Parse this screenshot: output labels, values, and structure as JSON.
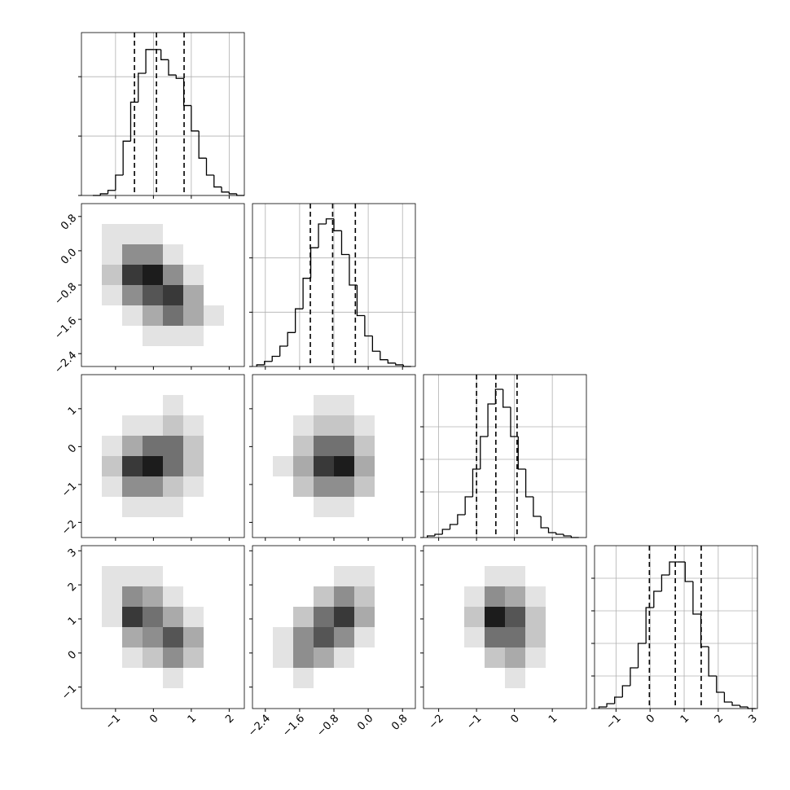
{
  "chart_data": {
    "type": "corner",
    "color": "#000000",
    "variables": [
      {
        "lim": [
          -1.9,
          2.4
        ],
        "ticks": [
          {
            "value": -1,
            "label": "−1"
          },
          0,
          1,
          2
        ],
        "bins": [
          -1.6,
          -1.4,
          -1.2,
          -1,
          -0.8,
          -0.6,
          -0.4,
          -0.2,
          0,
          0.2,
          0.4,
          0.6,
          0.8,
          1,
          1.2,
          1.4,
          1.6,
          1.8,
          2,
          2.2,
          2.4
        ],
        "counts": [
          0,
          1,
          3,
          12,
          32,
          55,
          72,
          86,
          86,
          80,
          71,
          69,
          53,
          38,
          22,
          12,
          5,
          2,
          1,
          0
        ],
        "hist_ylim": [
          0,
          96
        ],
        "hist_yticks": [
          0,
          35,
          70
        ],
        "quantiles": [
          -0.5,
          0.08,
          0.81
        ]
      },
      {
        "lim": [
          -2.7,
          1.1
        ],
        "ticks": [
          {
            "value": -2.4,
            "label": "−2.4"
          },
          {
            "value": -1.6,
            "label": "−1.6"
          },
          {
            "value": -0.8,
            "label": "−0.8"
          },
          {
            "value": 0,
            "label": "0.0"
          },
          0.8
        ],
        "bins": [
          -2.6,
          -2.42,
          -2.24,
          -2.06,
          -1.88,
          -1.7,
          -1.52,
          -1.34,
          -1.16,
          -0.98,
          -0.8,
          -0.62,
          -0.44,
          -0.26,
          -0.08,
          0.1,
          0.28,
          0.46,
          0.64,
          0.82,
          1.0
        ],
        "counts": [
          1,
          3,
          6,
          12,
          20,
          34,
          52,
          70,
          84,
          87,
          80,
          66,
          48,
          30,
          18,
          9,
          4,
          2,
          1,
          0
        ],
        "hist_ylim": [
          0,
          96
        ],
        "hist_yticks": [
          0,
          32,
          64
        ],
        "quantiles": [
          -1.35,
          -0.83,
          -0.3
        ]
      },
      {
        "lim": [
          -2.4,
          1.9
        ],
        "ticks": [
          {
            "value": -2,
            "label": "−2"
          },
          {
            "value": -1,
            "label": "−1"
          },
          0,
          1
        ],
        "bins": [
          -2.3,
          -2.1,
          -1.9,
          -1.7,
          -1.5,
          -1.3,
          -1.1,
          -0.9,
          -0.7,
          -0.5,
          -0.3,
          -0.1,
          0.1,
          0.3,
          0.5,
          0.7,
          0.9,
          1.1,
          1.3,
          1.5,
          1.7
        ],
        "counts": [
          1,
          2,
          5,
          8,
          14,
          25,
          42,
          62,
          82,
          91,
          80,
          62,
          42,
          25,
          13,
          6,
          3,
          2,
          1,
          0
        ],
        "hist_ylim": [
          0,
          100
        ],
        "hist_yticks": [
          0,
          28,
          48,
          68
        ],
        "quantiles": [
          -1.0,
          -0.49,
          0.07
        ]
      },
      {
        "lim": [
          -1.63,
          3.15
        ],
        "ticks": [
          {
            "value": -1,
            "label": "−1"
          },
          0,
          1,
          2,
          3
        ],
        "bins": [
          -1.5,
          -1.27,
          -1.04,
          -0.81,
          -0.58,
          -0.35,
          -0.12,
          0.11,
          0.34,
          0.57,
          0.8,
          1.03,
          1.26,
          1.49,
          1.72,
          1.95,
          2.18,
          2.41,
          2.64,
          2.87,
          3.1
        ],
        "counts": [
          1,
          3,
          7,
          14,
          25,
          40,
          62,
          72,
          82,
          90,
          90,
          78,
          58,
          38,
          20,
          10,
          4,
          2,
          1,
          0
        ],
        "hist_ylim": [
          0,
          100
        ],
        "hist_yticks": [
          0,
          20,
          40,
          60,
          80
        ],
        "quantiles": [
          -0.02,
          0.74,
          1.5
        ]
      }
    ],
    "density": [
      [
        [
          [
            0,
            0,
            0,
            0,
            0,
            0,
            0,
            0
          ],
          [
            0,
            1,
            1,
            1,
            0,
            0,
            0,
            0
          ],
          [
            0,
            1,
            4,
            4,
            1,
            0,
            0,
            0
          ],
          [
            0,
            2,
            7,
            8,
            4,
            1,
            0,
            0
          ],
          [
            0,
            1,
            4,
            6,
            7,
            3,
            0,
            0
          ],
          [
            0,
            0,
            1,
            3,
            5,
            3,
            1,
            0
          ],
          [
            0,
            0,
            0,
            1,
            1,
            1,
            0,
            0
          ],
          [
            0,
            0,
            0,
            0,
            0,
            0,
            0,
            0
          ]
        ]
      ],
      [
        [
          [
            0,
            0,
            0,
            0,
            0,
            0,
            0,
            0
          ],
          [
            0,
            0,
            0,
            0,
            1,
            0,
            0,
            0
          ],
          [
            0,
            0,
            1,
            1,
            2,
            1,
            0,
            0
          ],
          [
            0,
            1,
            3,
            5,
            5,
            2,
            0,
            0
          ],
          [
            0,
            2,
            7,
            8,
            5,
            2,
            0,
            0
          ],
          [
            0,
            1,
            4,
            4,
            2,
            1,
            0,
            0
          ],
          [
            0,
            0,
            1,
            1,
            1,
            0,
            0,
            0
          ],
          [
            0,
            0,
            0,
            0,
            0,
            0,
            0,
            0
          ]
        ],
        [
          [
            0,
            0,
            0,
            0,
            0,
            0,
            0,
            0
          ],
          [
            0,
            0,
            0,
            1,
            1,
            0,
            0,
            0
          ],
          [
            0,
            0,
            1,
            2,
            2,
            1,
            0,
            0
          ],
          [
            0,
            0,
            2,
            5,
            5,
            2,
            0,
            0
          ],
          [
            0,
            1,
            3,
            7,
            8,
            3,
            0,
            0
          ],
          [
            0,
            0,
            2,
            4,
            4,
            2,
            0,
            0
          ],
          [
            0,
            0,
            0,
            1,
            1,
            0,
            0,
            0
          ],
          [
            0,
            0,
            0,
            0,
            0,
            0,
            0,
            0
          ]
        ]
      ],
      [
        [
          [
            0,
            0,
            0,
            0,
            0,
            0,
            0,
            0
          ],
          [
            0,
            1,
            1,
            1,
            0,
            0,
            0,
            0
          ],
          [
            0,
            1,
            4,
            3,
            1,
            0,
            0,
            0
          ],
          [
            0,
            1,
            7,
            5,
            3,
            1,
            0,
            0
          ],
          [
            0,
            0,
            3,
            4,
            6,
            3,
            0,
            0
          ],
          [
            0,
            0,
            1,
            2,
            4,
            2,
            0,
            0
          ],
          [
            0,
            0,
            0,
            0,
            1,
            0,
            0,
            0
          ],
          [
            0,
            0,
            0,
            0,
            0,
            0,
            0,
            0
          ]
        ],
        [
          [
            0,
            0,
            0,
            0,
            0,
            0,
            0,
            0
          ],
          [
            0,
            0,
            0,
            0,
            1,
            1,
            0,
            0
          ],
          [
            0,
            0,
            0,
            2,
            4,
            2,
            0,
            0
          ],
          [
            0,
            0,
            2,
            5,
            7,
            3,
            0,
            0
          ],
          [
            0,
            1,
            4,
            6,
            4,
            1,
            0,
            0
          ],
          [
            0,
            1,
            4,
            3,
            1,
            0,
            0,
            0
          ],
          [
            0,
            0,
            1,
            0,
            0,
            0,
            0,
            0
          ],
          [
            0,
            0,
            0,
            0,
            0,
            0,
            0,
            0
          ]
        ],
        [
          [
            0,
            0,
            0,
            0,
            0,
            0,
            0,
            0
          ],
          [
            0,
            0,
            0,
            1,
            1,
            0,
            0,
            0
          ],
          [
            0,
            0,
            1,
            4,
            3,
            1,
            0,
            0
          ],
          [
            0,
            0,
            2,
            8,
            6,
            2,
            0,
            0
          ],
          [
            0,
            0,
            1,
            5,
            5,
            2,
            0,
            0
          ],
          [
            0,
            0,
            0,
            2,
            3,
            1,
            0,
            0
          ],
          [
            0,
            0,
            0,
            0,
            1,
            0,
            0,
            0
          ],
          [
            0,
            0,
            0,
            0,
            0,
            0,
            0,
            0
          ]
        ]
      ]
    ]
  }
}
